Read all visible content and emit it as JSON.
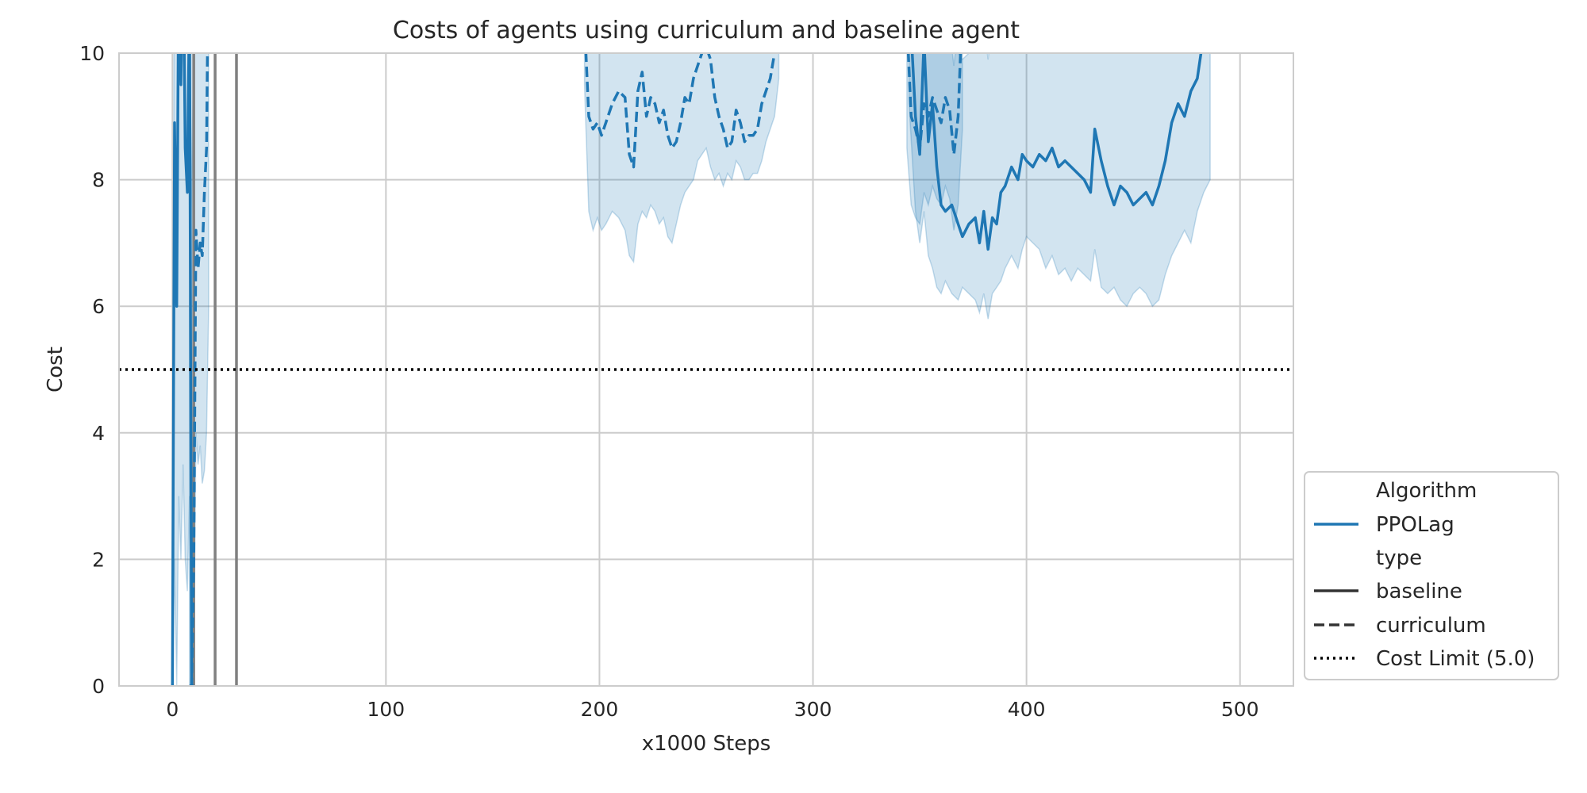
{
  "chart_data": {
    "type": "line",
    "title": "Costs of agents using curriculum and baseline agent",
    "xlabel": "x1000 Steps",
    "ylabel": "Cost",
    "xlim": [
      -25,
      525
    ],
    "ylim": [
      0,
      10
    ],
    "xticks": [
      0,
      100,
      200,
      300,
      400,
      500
    ],
    "yticks": [
      0,
      2,
      4,
      6,
      8,
      10
    ],
    "grid": true,
    "legend_position": "bottom-right",
    "colors": {
      "series": "#1f77b4",
      "band": "#1f77b4",
      "vline": "#808080",
      "limit": "#000000",
      "grid": "#cccccc"
    },
    "vertical_lines_x": [
      10,
      20,
      30
    ],
    "cost_limit": {
      "name": "Cost Limit (5.0)",
      "value": 5.0
    },
    "legend": {
      "hue_title": "Algorithm",
      "hue_items": [
        "PPOLag"
      ],
      "style_title": "type",
      "style_items": [
        "baseline",
        "curriculum",
        "Cost Limit (5.0)"
      ]
    },
    "series": [
      {
        "name": "baseline",
        "algorithm": "PPOLag",
        "style": "solid",
        "segments": [
          {
            "x": [
              0,
              1,
              2,
              3,
              4,
              5,
              6,
              7,
              8,
              9,
              10
            ],
            "y": [
              0,
              8.9,
              6.0,
              11.5,
              9.5,
              12.0,
              8.5,
              7.8,
              11.0,
              0,
              0
            ],
            "lower": [
              0,
              2.0,
              0,
              3.0,
              2.0,
              3.5,
              2.0,
              1.5,
              3.0,
              0,
              0
            ],
            "upper": [
              0,
              14,
              12,
              16,
              15,
              16,
              14,
              13,
              15,
              10,
              10
            ]
          },
          {
            "x": [
              345,
              348,
              350,
              352,
              354,
              356,
              358,
              360,
              362,
              365,
              368,
              370,
              373,
              376,
              378,
              380,
              382,
              384,
              386,
              388,
              390,
              393,
              396,
              398,
              400,
              403,
              406,
              409,
              412,
              415,
              418,
              421,
              424,
              427,
              430,
              432,
              435,
              438,
              441,
              444,
              447,
              450,
              453,
              456,
              459,
              462,
              465,
              468,
              471,
              474,
              477,
              480,
              483,
              486
            ],
            "y": [
              11,
              9.0,
              8.4,
              10.2,
              8.6,
              9.2,
              8.2,
              7.6,
              7.5,
              7.6,
              7.3,
              7.1,
              7.3,
              7.4,
              7.0,
              7.5,
              6.9,
              7.4,
              7.3,
              7.8,
              7.9,
              8.2,
              8.0,
              8.4,
              8.3,
              8.2,
              8.4,
              8.3,
              8.5,
              8.2,
              8.3,
              8.2,
              8.1,
              8.0,
              7.8,
              8.8,
              8.3,
              7.9,
              7.6,
              7.9,
              7.8,
              7.6,
              7.7,
              7.8,
              7.6,
              7.9,
              8.3,
              8.9,
              9.2,
              9.0,
              9.4,
              9.6,
              10.3,
              11
            ],
            "lower": [
              9.2,
              7.5,
              7.0,
              7.5,
              6.8,
              6.6,
              6.3,
              6.2,
              6.4,
              6.2,
              6.1,
              6.3,
              6.2,
              6.1,
              5.9,
              6.2,
              5.8,
              6.2,
              6.3,
              6.4,
              6.6,
              6.8,
              6.6,
              6.9,
              7.1,
              7.0,
              6.9,
              6.6,
              6.8,
              6.5,
              6.6,
              6.4,
              6.6,
              6.5,
              6.4,
              6.9,
              6.3,
              6.2,
              6.3,
              6.1,
              6.0,
              6.2,
              6.3,
              6.2,
              6.0,
              6.1,
              6.5,
              6.8,
              7.0,
              7.2,
              7.0,
              7.5,
              7.8,
              8.0
            ],
            "upper": [
              14,
              12,
              11.5,
              13,
              11.5,
              12,
              11,
              10.5,
              10,
              10.5,
              10,
              9.9,
              10,
              10.5,
              10,
              10.5,
              9.9,
              10.5,
              10.5,
              11,
              11,
              11.5,
              11,
              11.5,
              11.5,
              11.5,
              12,
              12,
              12,
              11.5,
              11.5,
              11.5,
              11,
              11,
              10.8,
              11.5,
              11,
              10.8,
              10.5,
              10.8,
              10.6,
              10.4,
              10.5,
              10.6,
              10.4,
              10.6,
              11,
              11.5,
              11.8,
              11.5,
              11.8,
              12,
              12.5,
              13
            ]
          }
        ]
      },
      {
        "name": "curriculum",
        "algorithm": "PPOLag",
        "style": "dashed",
        "segments": [
          {
            "x": [
              8,
              9,
              10,
              11,
              12,
              13,
              14,
              15,
              16,
              17
            ],
            "y": [
              0,
              0,
              2.0,
              7.2,
              6.6,
              7.0,
              6.8,
              7.8,
              8.5,
              12
            ],
            "lower": [
              0,
              0,
              0,
              4.0,
              3.5,
              3.8,
              3.2,
              3.4,
              4.0,
              6
            ],
            "upper": [
              6,
              8,
              10,
              11,
              11,
              11.5,
              11.5,
              12,
              13,
              15
            ]
          },
          {
            "x": [
              193,
              195,
              197,
              199,
              201,
              203,
              206,
              209,
              212,
              214,
              216,
              218,
              220,
              222,
              224,
              226,
              228,
              230,
              232,
              234,
              236,
              238,
              240,
              242,
              244,
              246,
              248,
              250,
              252,
              254,
              256,
              258,
              260,
              262,
              264,
              266,
              268,
              270,
              272,
              274,
              276,
              278,
              280,
              282,
              284
            ],
            "y": [
              10.5,
              9.0,
              8.8,
              8.9,
              8.7,
              8.9,
              9.2,
              9.4,
              9.3,
              8.4,
              8.2,
              9.4,
              9.7,
              9.0,
              9.3,
              9.2,
              8.9,
              9.1,
              8.7,
              8.5,
              8.6,
              8.9,
              9.3,
              9.2,
              9.6,
              9.8,
              10.0,
              10.1,
              9.9,
              9.3,
              9.0,
              8.8,
              8.5,
              8.6,
              9.1,
              8.9,
              8.6,
              8.7,
              8.7,
              8.8,
              9.2,
              9.4,
              9.6,
              10.0,
              10.8
            ],
            "lower": [
              9.5,
              7.5,
              7.2,
              7.4,
              7.2,
              7.3,
              7.5,
              7.4,
              7.2,
              6.8,
              6.7,
              7.3,
              7.5,
              7.4,
              7.6,
              7.5,
              7.3,
              7.4,
              7.1,
              7.0,
              7.3,
              7.6,
              7.8,
              7.9,
              8.0,
              8.3,
              8.4,
              8.5,
              8.2,
              8.0,
              8.1,
              7.9,
              8.1,
              8.0,
              8.3,
              8.2,
              8.0,
              8.0,
              8.1,
              8.1,
              8.3,
              8.6,
              8.8,
              9.0,
              9.6
            ],
            "upper": [
              12,
              10.8,
              10.5,
              10.6,
              10.4,
              10.5,
              10.8,
              11,
              11,
              10.5,
              10.2,
              11.2,
              11.5,
              10.9,
              11.2,
              11,
              10.8,
              11,
              10.5,
              10.3,
              10.3,
              10.5,
              11,
              10.8,
              11.2,
              11.4,
              11.6,
              11.7,
              11.5,
              11,
              10.8,
              10.6,
              10.2,
              10.3,
              10.8,
              10.5,
              10.3,
              10.3,
              10.4,
              10.5,
              11,
              11.2,
              11.4,
              11.8,
              12.2
            ]
          },
          {
            "x": [
              344,
              346,
              348,
              350,
              352,
              354,
              356,
              358,
              360,
              362,
              364,
              366,
              368,
              370
            ],
            "y": [
              10.5,
              9.0,
              8.8,
              8.5,
              9.2,
              9.0,
              9.3,
              9.1,
              8.9,
              9.3,
              9.1,
              8.4,
              9.0,
              10.8
            ],
            "lower": [
              8.5,
              7.6,
              7.4,
              7.3,
              7.8,
              7.6,
              7.9,
              7.7,
              7.6,
              7.9,
              7.7,
              7.2,
              7.6,
              8.8
            ],
            "upper": [
              12,
              10.5,
              10.3,
              10,
              10.6,
              10.4,
              10.7,
              10.5,
              10.2,
              10.6,
              10.4,
              9.8,
              10.4,
              12
            ]
          }
        ]
      }
    ]
  }
}
